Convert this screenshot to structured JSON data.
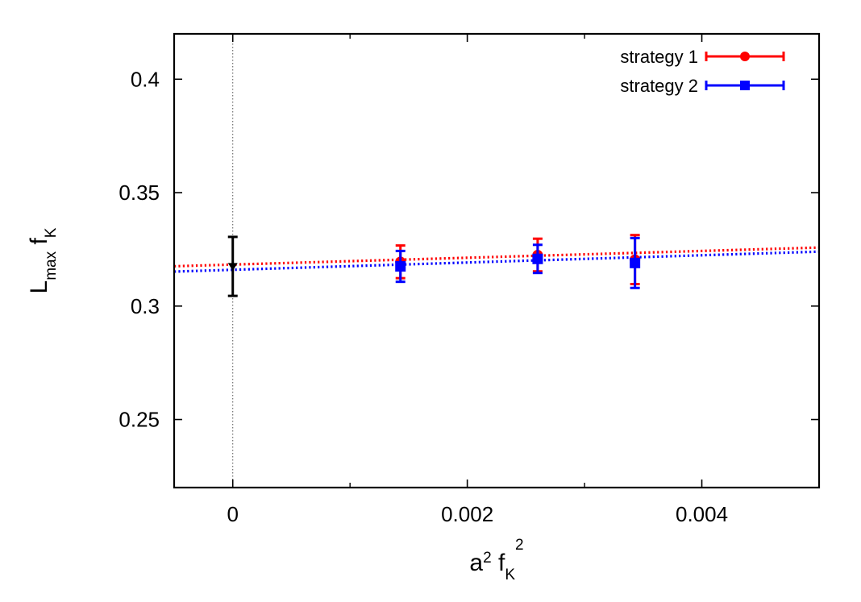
{
  "chart_data": {
    "type": "scatter",
    "xlabel": {
      "base1": "a",
      "sup1": "2",
      "base2": "f",
      "sub2": "K",
      "sup2": "2"
    },
    "ylabel": {
      "base1": "L",
      "sub1": "max",
      "base2": "f",
      "sub2": "K"
    },
    "xlim": [
      -0.0005,
      0.005
    ],
    "ylim": [
      0.22,
      0.42
    ],
    "x_ticks": [
      {
        "value": 0,
        "label": "0"
      },
      {
        "value": 0.002,
        "label": "0.002"
      },
      {
        "value": 0.004,
        "label": "0.004"
      }
    ],
    "x_minor_ticks": [
      0.001,
      0.003
    ],
    "y_ticks": [
      {
        "value": 0.25,
        "label": "0.25"
      },
      {
        "value": 0.3,
        "label": "0.3"
      },
      {
        "value": 0.35,
        "label": "0.35"
      },
      {
        "value": 0.4,
        "label": "0.4"
      }
    ],
    "grid": false,
    "reference_line": {
      "x": 0,
      "style": "dotted",
      "color": "#555555"
    },
    "legend_position": "top-right",
    "series": [
      {
        "name": "strategy 1",
        "color": "#ff0000",
        "marker": "circle",
        "points": [
          {
            "x": 0.00143,
            "y": 0.3195,
            "err": 0.0072
          },
          {
            "x": 0.0026,
            "y": 0.3225,
            "err": 0.0072
          },
          {
            "x": 0.00343,
            "y": 0.3205,
            "err": 0.0108
          }
        ],
        "fit": {
          "intercept": 0.3183,
          "slope": 1.5
        }
      },
      {
        "name": "strategy 2",
        "color": "#0000ff",
        "marker": "square",
        "points": [
          {
            "x": 0.00143,
            "y": 0.3175,
            "err": 0.0068
          },
          {
            "x": 0.0026,
            "y": 0.3208,
            "err": 0.0062
          },
          {
            "x": 0.00343,
            "y": 0.319,
            "err": 0.011
          }
        ],
        "fit": {
          "intercept": 0.316,
          "slope": 1.6
        }
      }
    ],
    "extrapolated_point": {
      "x": 0,
      "y": 0.3175,
      "err": 0.013,
      "color": "#000000",
      "marker": "triangle-down"
    }
  }
}
